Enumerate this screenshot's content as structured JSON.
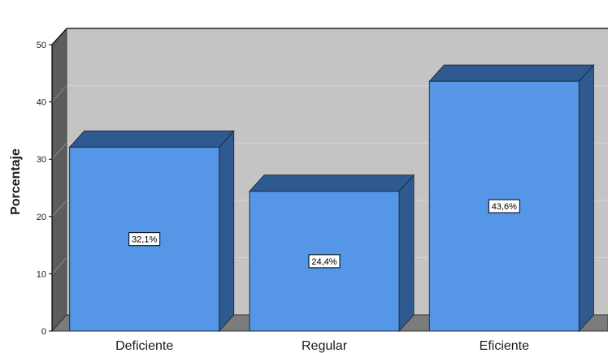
{
  "chart_data": {
    "type": "bar",
    "categories": [
      "Deficiente",
      "Regular",
      "Eficiente"
    ],
    "values": [
      32.1,
      24.4,
      43.6
    ],
    "data_labels": [
      "32,1%",
      "24,4%",
      "43,6%"
    ],
    "title": "",
    "xlabel": "",
    "ylabel": "Porcentaje",
    "ylim": [
      0,
      50
    ],
    "yticks": [
      0,
      10,
      20,
      30,
      40,
      50
    ],
    "ytick_labels": [
      "0",
      "10",
      "20",
      "30",
      "40",
      "50"
    ],
    "grid": true,
    "style": "3d",
    "colors": {
      "bar_front": "#5596e6",
      "bar_top": "#2f5a8f",
      "bar_side": "#2f5a8f",
      "bar_edge": "#1f2f44",
      "plot_back": "#c4c4c4",
      "side_wall": "#5c5c5c",
      "floor": "#7c7c7c",
      "gridline": "#d6d6d6"
    }
  }
}
